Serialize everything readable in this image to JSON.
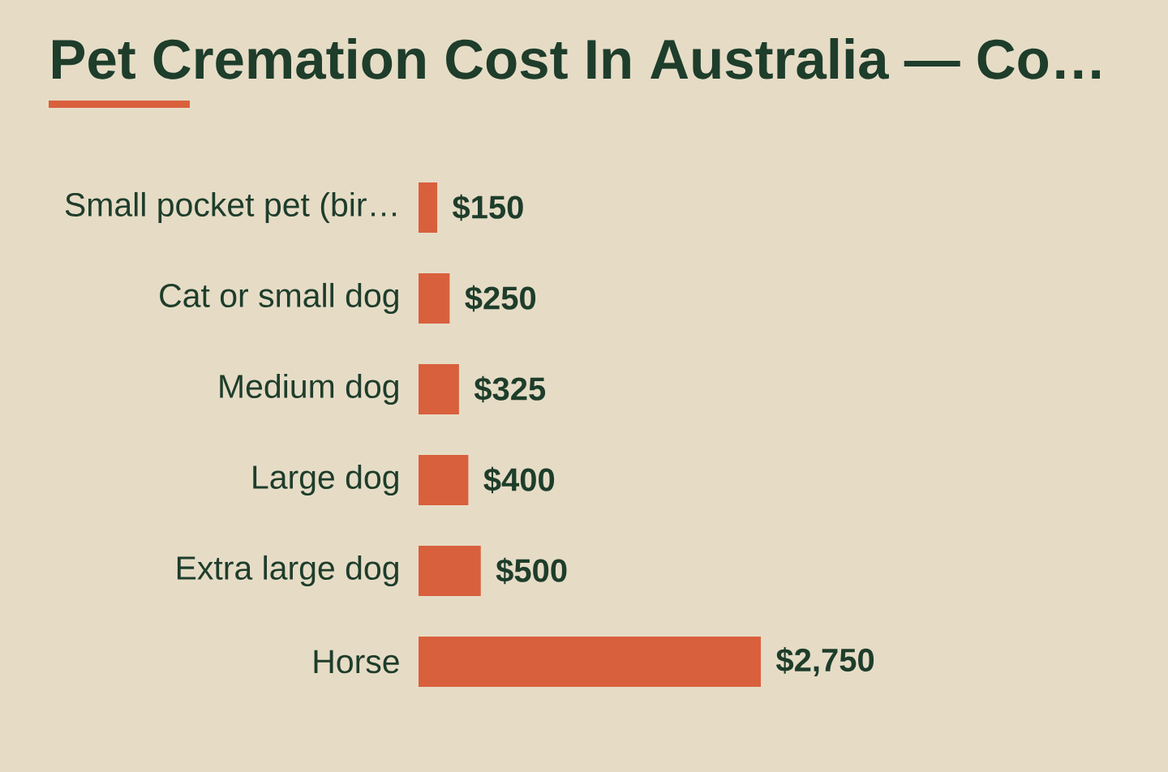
{
  "chart_data": {
    "type": "bar",
    "orientation": "horizontal",
    "title": "Pet Cremation Cost In Australia — Co…",
    "categories": [
      "Small pocket pet (bir…",
      "Cat or small dog",
      "Medium dog",
      "Large dog",
      "Extra large dog",
      "Horse"
    ],
    "values": [
      150,
      250,
      325,
      400,
      500,
      2750
    ],
    "color": "#d9603d",
    "value_labels": [
      "$150",
      "$250",
      "$325",
      "$400",
      "$500",
      "$2,750"
    ],
    "tick_labels": "y"
  }
}
